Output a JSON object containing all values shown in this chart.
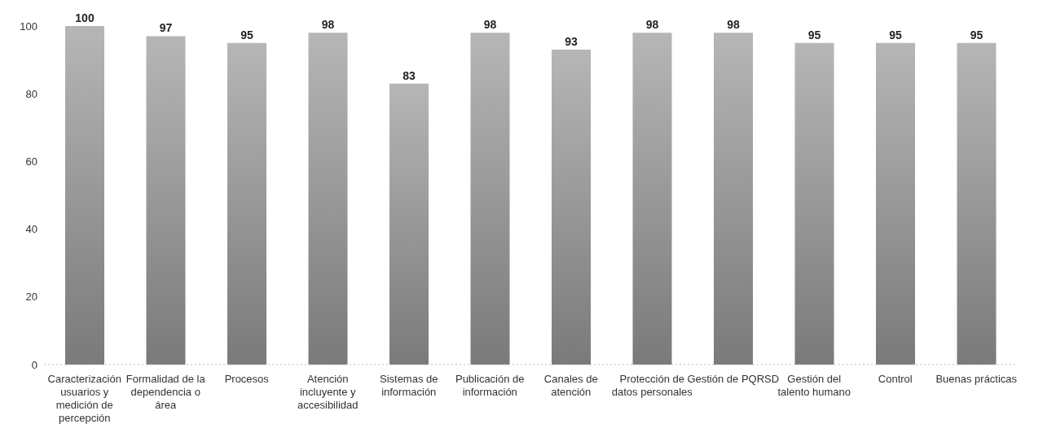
{
  "chart_data": {
    "type": "bar",
    "categories": [
      "Caracterización usuarios y medición de percepción",
      "Formalidad de la dependencia o área",
      "Procesos",
      "Atención incluyente y accesibilidad",
      "Sistemas de información",
      "Publicación de información",
      "Canales de atención",
      "Protección de datos personales",
      "Gestión de PQRSD",
      "Gestión del talento humano",
      "Control",
      "Buenas prácticas"
    ],
    "values": [
      100,
      97,
      95,
      98,
      83,
      98,
      93,
      98,
      98,
      95,
      95,
      95
    ],
    "color": "#7a7a7a",
    "ylim": [
      0,
      100
    ],
    "yticks": [
      0,
      20,
      40,
      60,
      80,
      100
    ],
    "data_labels": true
  }
}
